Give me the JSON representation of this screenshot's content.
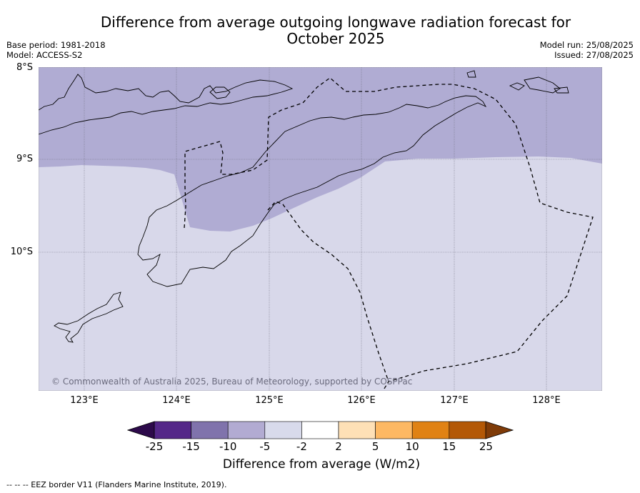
{
  "header": {
    "title_line1": "Difference from average outgoing longwave radiation forecast for",
    "title_line2": "October 2025",
    "base_period": "Base period: 1981-2018",
    "model": "Model: ACCESS-S2",
    "model_run": "Model run: 25/08/2025",
    "issued": "Issued: 27/08/2025"
  },
  "map": {
    "lat_labels": [
      "8°S",
      "9°S",
      "10°S"
    ],
    "lon_labels": [
      "123°E",
      "124°E",
      "125°E",
      "126°E",
      "127°E",
      "128°E"
    ],
    "extent": {
      "lon": [
        122.5,
        128.6
      ],
      "lat": [
        -11.5,
        -8.0
      ]
    },
    "categories": [
      {
        "range": "-10 to -5",
        "color": "#b0acd3",
        "region": "north"
      },
      {
        "range": "-5 to -2",
        "color": "#d8d8ea",
        "region": "south"
      }
    ],
    "copyright": "© Commonwealth of Australia 2025, Bureau of Meteorology, supported by COSPPac"
  },
  "colorbar": {
    "label": "Difference from average (W/m2)",
    "ticks": [
      "-25",
      "-15",
      "-10",
      "-5",
      "-2",
      "2",
      "5",
      "10",
      "15",
      "25"
    ],
    "colors": {
      "below": "#2d0a4b",
      "bins": [
        "#542788",
        "#8073ac",
        "#b2abd2",
        "#d8daeb",
        "#ffffff",
        "#fee0b6",
        "#fdb863",
        "#e08214",
        "#b35806"
      ],
      "above": "#7f3b08"
    }
  },
  "footnote": "-- -- -- EEZ border V11 (Flanders Marine Institute, 2019)."
}
